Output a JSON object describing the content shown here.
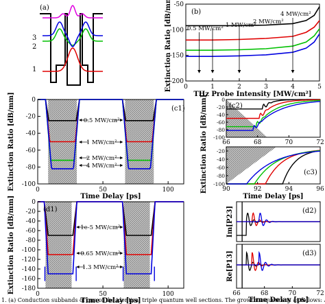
{
  "figure": {
    "caption": "1. (a) Conduction subbands of one of the identical triple quantum well sections. The growth sequence is as follows: A GaAs deep quantum"
  },
  "chart_data": [
    {
      "id": "a",
      "type": "diagram",
      "panel_label": "(a)",
      "level_labels": [
        "1",
        "2",
        "3"
      ]
    },
    {
      "id": "b",
      "type": "line",
      "panel_label": "(b)",
      "xlabel": "THz Probe Intensity [MW/cm²]",
      "ylabel": "Extinction Ratio [dB/mm]",
      "xticks": [
        "0",
        "1",
        "2",
        "3",
        "4",
        "5"
      ],
      "yticks": [
        "-50",
        "-100",
        "-150",
        "-200"
      ],
      "xlim": [
        0,
        5
      ],
      "ylim": [
        -200,
        -50
      ],
      "arrow_labels": [
        "0.5 MW/cm²",
        "1 MW/cm²",
        "2 MW/cm²",
        "4 MW/cm²"
      ],
      "arrow_x": [
        0.5,
        1,
        2,
        4
      ],
      "series": [
        {
          "color": "#000000",
          "x": [
            0,
            1,
            2,
            3,
            4,
            4.5,
            4.8,
            5
          ],
          "y": [
            -92,
            -92,
            -92,
            -91,
            -88,
            -82,
            -72,
            -55
          ]
        },
        {
          "color": "#e00000",
          "x": [
            0,
            1,
            2,
            3,
            4,
            4.5,
            4.8,
            5
          ],
          "y": [
            -120,
            -120,
            -119,
            -117,
            -113,
            -105,
            -95,
            -82
          ]
        },
        {
          "color": "#00c000",
          "x": [
            0,
            1,
            2,
            3,
            4,
            4.5,
            4.8,
            5
          ],
          "y": [
            -140,
            -140,
            -139,
            -137,
            -132,
            -124,
            -112,
            -98
          ]
        },
        {
          "color": "#0000e0",
          "x": [
            0,
            1,
            2,
            3,
            4,
            4.5,
            4.8,
            5
          ],
          "y": [
            -152,
            -152,
            -151,
            -149,
            -144,
            -136,
            -124,
            -108
          ]
        }
      ]
    },
    {
      "id": "c1",
      "type": "line",
      "panel_label": "(c1)",
      "xlabel": "Time Delay [ps]",
      "ylabel": "Extinction Ratio [dB/mm]",
      "xticks": [
        "0",
        "50",
        "100"
      ],
      "yticks": [
        "0",
        "-20",
        "-40",
        "-60",
        "-80",
        "-100"
      ],
      "xlim": [
        0,
        112
      ],
      "ylim": [
        -100,
        0
      ],
      "annotations": [
        "0.5 MW/cm²",
        "1 MW/cm²",
        "2 MW/cm²",
        "4 MW/cm²"
      ],
      "levels": [
        -25,
        -50,
        -72,
        -82
      ],
      "colors": [
        "#000000",
        "#e00000",
        "#00c000",
        "#0000e0"
      ]
    },
    {
      "id": "c2",
      "type": "line",
      "panel_label": "(c2)",
      "xticks": [
        "66",
        "68",
        "70",
        "72"
      ],
      "yticks": [
        "0",
        "-20",
        "-40",
        "-60",
        "-80",
        "-100"
      ],
      "xlim": [
        66,
        72
      ],
      "ylim": [
        -100,
        0
      ]
    },
    {
      "id": "c3",
      "type": "line",
      "panel_label": "(c3)",
      "xlabel": "Time Delay [ps]",
      "xticks": [
        "90",
        "92",
        "94",
        "96"
      ],
      "yticks": [
        "-20",
        "-40",
        "-60",
        "-80",
        "-100"
      ],
      "xlim": [
        90,
        96
      ],
      "ylim": [
        -100,
        -10
      ]
    },
    {
      "id": "d1",
      "type": "line",
      "panel_label": "(d1)",
      "xlabel": "Time Delay [ps]",
      "ylabel": "Extinction Ratio [dB/mm]",
      "xticks": [
        "0",
        "50",
        "100"
      ],
      "yticks": [
        "0",
        "-20",
        "-40",
        "-60",
        "-80",
        "-100",
        "-120",
        "-140",
        "-160",
        "-180"
      ],
      "xlim": [
        0,
        112
      ],
      "ylim": [
        -180,
        0
      ],
      "annotations": [
        "1e-5 MW/cm²",
        "0.65 MW/cm²",
        "1.3 MW/cm²"
      ],
      "levels": [
        -70,
        -110,
        -150
      ],
      "colors": [
        "#000000",
        "#e00000",
        "#0000e0"
      ]
    },
    {
      "id": "d2",
      "type": "line",
      "panel_label": "(d2)",
      "ylabel": "Im[P23]"
    },
    {
      "id": "d3",
      "type": "line",
      "panel_label": "(d3)",
      "ylabel": "Re[P13]",
      "xlabel": "Time Delay [ps]",
      "xticks": [
        "66",
        "68",
        "70",
        "72"
      ]
    }
  ]
}
